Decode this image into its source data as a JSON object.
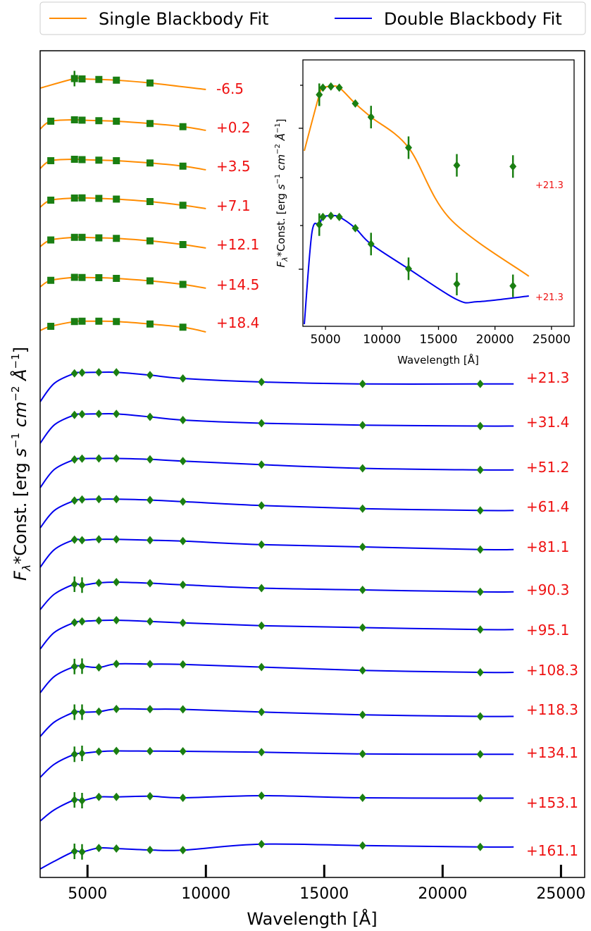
{
  "legend": {
    "placement": "top",
    "entries": [
      {
        "label": "Single Blackbody Fit",
        "color": "#ff8c00"
      },
      {
        "label": "Double Blackbody Fit",
        "color": "#0000ee"
      }
    ]
  },
  "marker_color": "#1a7f12",
  "label_color": "#ee1111",
  "chart_data": [
    {
      "id": "main",
      "type": "line",
      "xlabel": "Wavelength [Å]",
      "ylabel": "Fλ*Const. [erg s⁻¹ cm⁻² Å⁻¹]",
      "xlim": [
        3000,
        26000
      ],
      "xticks": [
        5000,
        10000,
        15000,
        20000,
        25000
      ],
      "xtick_labels": [
        "5000",
        "10000",
        "15000",
        "20000",
        "25000"
      ],
      "yticks_shown": false,
      "grid": false,
      "series": [
        {
          "label": "-6.5",
          "fit": "single",
          "marker": "square",
          "points": [
            [
              4450,
              3.1
            ],
            [
              4770,
              3.0
            ],
            [
              5480,
              2.85
            ],
            [
              6220,
              2.65
            ],
            [
              7640,
              1.85
            ]
          ]
        },
        {
          "label": "+0.2",
          "fit": "single",
          "marker": "square",
          "points": [
            [
              3450,
              2.6
            ],
            [
              4450,
              3.0
            ],
            [
              4770,
              2.9
            ],
            [
              5480,
              2.75
            ],
            [
              6220,
              2.6
            ],
            [
              7640,
              1.95
            ],
            [
              9030,
              1.05
            ]
          ]
        },
        {
          "label": "+3.5",
          "fit": "single",
          "marker": "square",
          "points": [
            [
              3450,
              2.6
            ],
            [
              4450,
              3.0
            ],
            [
              4770,
              2.9
            ],
            [
              5480,
              2.75
            ],
            [
              6220,
              2.6
            ],
            [
              7640,
              1.95
            ],
            [
              9030,
              1.05
            ]
          ]
        },
        {
          "label": "+7.1",
          "fit": "single",
          "marker": "square",
          "points": [
            [
              3450,
              2.4
            ],
            [
              4450,
              3.0
            ],
            [
              4770,
              3.05
            ],
            [
              5480,
              2.9
            ],
            [
              6220,
              2.7
            ],
            [
              7640,
              2.0
            ],
            [
              9030,
              0.95
            ]
          ]
        },
        {
          "label": "+12.1",
          "fit": "single",
          "marker": "square",
          "points": [
            [
              3450,
              2.3
            ],
            [
              4450,
              3.05
            ],
            [
              4770,
              3.05
            ],
            [
              5480,
              2.9
            ],
            [
              6220,
              2.75
            ],
            [
              7640,
              2.05
            ],
            [
              9030,
              1.0
            ]
          ]
        },
        {
          "label": "+14.5",
          "fit": "single",
          "marker": "square",
          "points": [
            [
              3450,
              2.25
            ],
            [
              4450,
              3.1
            ],
            [
              4770,
              3.05
            ],
            [
              5480,
              3.0
            ],
            [
              6220,
              2.8
            ],
            [
              7640,
              2.1
            ],
            [
              9030,
              1.1
            ]
          ]
        },
        {
          "label": "+18.4",
          "fit": "single",
          "marker": "square",
          "points": [
            [
              3450,
              1.6
            ],
            [
              4450,
              2.95
            ],
            [
              4770,
              3.05
            ],
            [
              5480,
              3.05
            ],
            [
              6220,
              2.95
            ],
            [
              7640,
              2.25
            ],
            [
              9030,
              1.35
            ]
          ]
        },
        {
          "label": "+21.3",
          "fit": "double",
          "marker": "diamond",
          "points": [
            [
              4450,
              3.05
            ],
            [
              4770,
              3.25
            ],
            [
              5480,
              3.35
            ],
            [
              6220,
              3.35
            ],
            [
              7640,
              2.55
            ],
            [
              9030,
              1.6
            ],
            [
              12350,
              0.6
            ],
            [
              16620,
              0.05
            ],
            [
              21590,
              0.05
            ]
          ]
        },
        {
          "label": "+31.4",
          "fit": "double",
          "marker": "diamond",
          "points": [
            [
              4450,
              3.05
            ],
            [
              4770,
              3.25
            ],
            [
              5480,
              3.35
            ],
            [
              6220,
              3.35
            ],
            [
              7640,
              2.5
            ],
            [
              9030,
              1.6
            ],
            [
              12350,
              0.7
            ],
            [
              16620,
              0.15
            ],
            [
              21590,
              -0.1
            ]
          ]
        },
        {
          "label": "+51.2",
          "fit": "double",
          "marker": "diamond",
          "points": [
            [
              4450,
              3.0
            ],
            [
              4770,
              3.25
            ],
            [
              5480,
              3.3
            ],
            [
              6220,
              3.3
            ],
            [
              7640,
              3.05
            ],
            [
              9030,
              2.55
            ],
            [
              12350,
              1.55
            ],
            [
              16620,
              0.5
            ],
            [
              21590,
              0.05
            ]
          ]
        },
        {
          "label": "+61.4",
          "fit": "double",
          "marker": "diamond",
          "points": [
            [
              4450,
              2.75
            ],
            [
              4770,
              3.05
            ],
            [
              5480,
              3.15
            ],
            [
              6220,
              3.15
            ],
            [
              7640,
              2.9
            ],
            [
              9030,
              2.45
            ],
            [
              12350,
              1.35
            ],
            [
              16620,
              0.45
            ],
            [
              21590,
              -0.05
            ]
          ]
        },
        {
          "label": "+81.1",
          "fit": "double",
          "marker": "diamond",
          "points": [
            [
              4450,
              2.85
            ],
            [
              4770,
              2.7
            ],
            [
              5480,
              2.95
            ],
            [
              6220,
              2.95
            ],
            [
              7640,
              2.7
            ],
            [
              9030,
              2.45
            ],
            [
              12350,
              1.45
            ],
            [
              16620,
              0.8
            ],
            [
              21590,
              0.05
            ]
          ]
        },
        {
          "label": "+90.3",
          "fit": "double",
          "marker": "diamond",
          "points": [
            [
              4450,
              2.2
            ],
            [
              4770,
              1.95
            ],
            [
              5480,
              2.6
            ],
            [
              6220,
              2.8
            ],
            [
              7640,
              2.5
            ],
            [
              9030,
              2.05
            ],
            [
              12350,
              1.1
            ],
            [
              16620,
              0.6
            ],
            [
              21590,
              0.05
            ]
          ]
        },
        {
          "label": "+95.1",
          "fit": "double",
          "marker": "diamond",
          "points": [
            [
              4450,
              2.55
            ],
            [
              4770,
              2.85
            ],
            [
              5480,
              3.1
            ],
            [
              6220,
              3.2
            ],
            [
              7640,
              2.85
            ],
            [
              9030,
              2.45
            ],
            [
              12350,
              1.65
            ],
            [
              16620,
              1.1
            ],
            [
              21590,
              0.55
            ]
          ]
        },
        {
          "label": "+108.3",
          "fit": "double",
          "marker": "diamond",
          "points": [
            [
              4450,
              2.45
            ],
            [
              4770,
              2.55
            ],
            [
              5480,
              2.2
            ],
            [
              6220,
              3.2
            ],
            [
              7640,
              3.15
            ],
            [
              9030,
              3.05
            ],
            [
              12350,
              2.3
            ],
            [
              16620,
              1.35
            ],
            [
              21590,
              0.8
            ]
          ]
        },
        {
          "label": "+118.3",
          "fit": "double",
          "marker": "diamond",
          "points": [
            [
              4450,
              1.9
            ],
            [
              4770,
              1.9
            ],
            [
              5480,
              2.05
            ],
            [
              6220,
              2.8
            ],
            [
              7640,
              2.75
            ],
            [
              9030,
              2.7
            ],
            [
              12350,
              1.95
            ],
            [
              16620,
              1.15
            ],
            [
              21590,
              0.7
            ]
          ]
        },
        {
          "label": "+134.1",
          "fit": "double",
          "marker": "diamond",
          "points": [
            [
              4450,
              1.55
            ],
            [
              4770,
              1.8
            ],
            [
              5480,
              2.3
            ],
            [
              6220,
              2.5
            ],
            [
              7640,
              2.45
            ],
            [
              9030,
              2.4
            ],
            [
              12350,
              2.15
            ],
            [
              16620,
              1.65
            ],
            [
              21590,
              1.55
            ]
          ]
        },
        {
          "label": "+153.1",
          "fit": "double",
          "marker": "diamond",
          "points": [
            [
              4450,
              1.0
            ],
            [
              4770,
              0.8
            ],
            [
              5480,
              1.85
            ],
            [
              6220,
              1.85
            ],
            [
              7640,
              2.05
            ],
            [
              9030,
              1.6
            ],
            [
              12350,
              2.2
            ],
            [
              16620,
              1.6
            ],
            [
              21590,
              1.5
            ]
          ]
        },
        {
          "label": "+161.1",
          "fit": "double",
          "marker": "diamond",
          "points": [
            [
              4450,
              0.0
            ],
            [
              4770,
              -0.15
            ],
            [
              5480,
              0.95
            ],
            [
              6220,
              0.8
            ],
            [
              7640,
              0.4
            ],
            [
              9030,
              0.35
            ],
            [
              12350,
              2.05
            ],
            [
              16620,
              1.65
            ],
            [
              21590,
              1.25
            ]
          ]
        }
      ]
    },
    {
      "id": "inset",
      "type": "line",
      "xlabel": "Wavelength [Å]",
      "ylabel": "Fλ*Const. [erg s⁻¹ cm⁻² Å⁻¹]",
      "xlim": [
        3000,
        27000
      ],
      "xticks": [
        5000,
        10000,
        15000,
        20000,
        25000
      ],
      "xtick_labels": [
        "5000",
        "10000",
        "15000",
        "20000",
        "25000"
      ],
      "grid": false,
      "series": [
        {
          "label": "+21.3",
          "fit": "single",
          "marker": "diamond",
          "points": [
            [
              4450,
              8.3
            ],
            [
              4770,
              8.9
            ],
            [
              5480,
              9.0
            ],
            [
              6220,
              8.9
            ],
            [
              7640,
              7.55
            ],
            [
              9030,
              6.4
            ],
            [
              12350,
              3.8
            ],
            [
              16620,
              2.3
            ],
            [
              21590,
              2.2
            ]
          ]
        },
        {
          "label": "+21.3",
          "fit": "double",
          "marker": "diamond",
          "points": [
            [
              4450,
              3.25
            ],
            [
              4770,
              3.9
            ],
            [
              5480,
              4.0
            ],
            [
              6220,
              3.9
            ],
            [
              7640,
              2.95
            ],
            [
              9030,
              1.6
            ],
            [
              12350,
              -0.5
            ],
            [
              16620,
              -1.8
            ],
            [
              21590,
              -1.95
            ]
          ]
        }
      ]
    }
  ]
}
